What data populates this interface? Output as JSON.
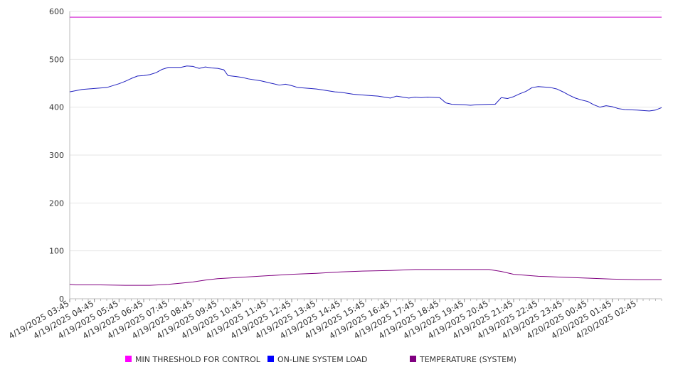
{
  "chart_data": {
    "type": "line",
    "title": "",
    "xlabel": "",
    "ylabel": "",
    "ylim": [
      0,
      600
    ],
    "y_ticks": [
      0,
      100,
      200,
      300,
      400,
      500,
      600
    ],
    "grid": true,
    "legend_position": "bottom",
    "x_tick_labels": [
      "4/19/2025 03:45",
      "4/19/2025 04:45",
      "4/19/2025 05:45",
      "4/19/2025 06:45",
      "4/19/2025 07:45",
      "4/19/2025 08:45",
      "4/19/2025 09:45",
      "4/19/2025 10:45",
      "4/19/2025 11:45",
      "4/19/2025 12:45",
      "4/19/2025 13:45",
      "4/19/2025 14:45",
      "4/19/2025 15:45",
      "4/19/2025 16:45",
      "4/19/2025 17:45",
      "4/19/2025 18:45",
      "4/19/2025 19:45",
      "4/19/2025 20:45",
      "4/19/2025 21:45",
      "4/19/2025 22:45",
      "4/19/2025 23:45",
      "4/20/2025 00:45",
      "4/20/2025 01:45",
      "4/20/2025 02:45"
    ],
    "x_range": [
      "4/19/2025 03:45",
      "4/20/2025 03:45"
    ],
    "series": [
      {
        "name": "MIN THRESHOLD FOR CONTROL",
        "color": "#ff00ff",
        "line_color": "#cc00cc",
        "points": [
          [
            "4/19/2025 03:45",
            588
          ],
          [
            "4/20/2025 03:45",
            588
          ]
        ]
      },
      {
        "name": "ON-LINE SYSTEM LOAD",
        "color": "#0000ff",
        "line_color": "#1f1fbf",
        "points": [
          [
            "4/19/2025 03:45",
            432
          ],
          [
            "4/19/2025 04:15",
            437
          ],
          [
            "4/19/2025 04:45",
            439
          ],
          [
            "4/19/2025 05:15",
            441
          ],
          [
            "4/19/2025 05:45",
            449
          ],
          [
            "4/19/2025 06:00",
            454
          ],
          [
            "4/19/2025 06:15",
            460
          ],
          [
            "4/19/2025 06:30",
            465
          ],
          [
            "4/19/2025 06:45",
            466
          ],
          [
            "4/19/2025 07:00",
            468
          ],
          [
            "4/19/2025 07:15",
            472
          ],
          [
            "4/19/2025 07:30",
            479
          ],
          [
            "4/19/2025 07:45",
            483
          ],
          [
            "4/19/2025 08:15",
            483
          ],
          [
            "4/19/2025 08:30",
            486
          ],
          [
            "4/19/2025 08:45",
            485
          ],
          [
            "4/19/2025 09:00",
            481
          ],
          [
            "4/19/2025 09:15",
            484
          ],
          [
            "4/19/2025 09:30",
            482
          ],
          [
            "4/19/2025 09:45",
            481
          ],
          [
            "4/19/2025 10:00",
            478
          ],
          [
            "4/19/2025 10:10",
            466
          ],
          [
            "4/19/2025 10:30",
            464
          ],
          [
            "4/19/2025 10:45",
            462
          ],
          [
            "4/19/2025 11:00",
            459
          ],
          [
            "4/19/2025 11:30",
            455
          ],
          [
            "4/19/2025 11:45",
            452
          ],
          [
            "4/19/2025 12:00",
            449
          ],
          [
            "4/19/2025 12:15",
            446
          ],
          [
            "4/19/2025 12:30",
            448
          ],
          [
            "4/19/2025 12:45",
            445
          ],
          [
            "4/19/2025 13:00",
            441
          ],
          [
            "4/19/2025 13:30",
            439
          ],
          [
            "4/19/2025 13:45",
            438
          ],
          [
            "4/19/2025 14:00",
            436
          ],
          [
            "4/19/2025 14:30",
            432
          ],
          [
            "4/19/2025 14:45",
            431
          ],
          [
            "4/19/2025 15:15",
            427
          ],
          [
            "4/19/2025 15:45",
            425
          ],
          [
            "4/19/2025 16:15",
            423
          ],
          [
            "4/19/2025 16:30",
            421
          ],
          [
            "4/19/2025 16:45",
            419
          ],
          [
            "4/19/2025 17:00",
            423
          ],
          [
            "4/19/2025 17:15",
            421
          ],
          [
            "4/19/2025 17:30",
            419
          ],
          [
            "4/19/2025 17:45",
            421
          ],
          [
            "4/19/2025 18:00",
            420
          ],
          [
            "4/19/2025 18:15",
            421
          ],
          [
            "4/19/2025 18:45",
            420
          ],
          [
            "4/19/2025 19:00",
            409
          ],
          [
            "4/19/2025 19:15",
            406
          ],
          [
            "4/19/2025 19:45",
            405
          ],
          [
            "4/19/2025 20:00",
            404
          ],
          [
            "4/19/2025 20:15",
            405
          ],
          [
            "4/19/2025 20:45",
            406
          ],
          [
            "4/19/2025 21:00",
            406
          ],
          [
            "4/19/2025 21:15",
            420
          ],
          [
            "4/19/2025 21:30",
            418
          ],
          [
            "4/19/2025 21:45",
            422
          ],
          [
            "4/19/2025 22:00",
            428
          ],
          [
            "4/19/2025 22:15",
            433
          ],
          [
            "4/19/2025 22:30",
            441
          ],
          [
            "4/19/2025 22:45",
            443
          ],
          [
            "4/19/2025 23:00",
            442
          ],
          [
            "4/19/2025 23:15",
            441
          ],
          [
            "4/19/2025 23:30",
            438
          ],
          [
            "4/19/2025 23:45",
            432
          ],
          [
            "4/20/2025 00:00",
            425
          ],
          [
            "4/20/2025 00:15",
            419
          ],
          [
            "4/20/2025 00:30",
            415
          ],
          [
            "4/20/2025 00:45",
            412
          ],
          [
            "4/20/2025 01:00",
            405
          ],
          [
            "4/20/2025 01:15",
            400
          ],
          [
            "4/20/2025 01:30",
            403
          ],
          [
            "4/20/2025 01:45",
            401
          ],
          [
            "4/20/2025 02:00",
            397
          ],
          [
            "4/20/2025 02:15",
            395
          ],
          [
            "4/20/2025 02:45",
            394
          ],
          [
            "4/20/2025 03:00",
            393
          ],
          [
            "4/20/2025 03:15",
            392
          ],
          [
            "4/20/2025 03:30",
            394
          ],
          [
            "4/20/2025 03:45",
            399
          ]
        ]
      },
      {
        "name": "TEMPERATURE (SYSTEM)",
        "color": "#800080",
        "line_color": "#800080",
        "points": [
          [
            "4/19/2025 03:45",
            30
          ],
          [
            "4/19/2025 04:00",
            29
          ],
          [
            "4/19/2025 05:00",
            29
          ],
          [
            "4/19/2025 06:00",
            28
          ],
          [
            "4/19/2025 07:00",
            28
          ],
          [
            "4/19/2025 07:45",
            30
          ],
          [
            "4/19/2025 08:45",
            35
          ],
          [
            "4/19/2025 09:15",
            39
          ],
          [
            "4/19/2025 09:45",
            42
          ],
          [
            "4/19/2025 10:45",
            45
          ],
          [
            "4/19/2025 11:45",
            48
          ],
          [
            "4/19/2025 12:45",
            51
          ],
          [
            "4/19/2025 13:45",
            53
          ],
          [
            "4/19/2025 14:45",
            56
          ],
          [
            "4/19/2025 15:45",
            58
          ],
          [
            "4/19/2025 16:45",
            59
          ],
          [
            "4/19/2025 17:45",
            61
          ],
          [
            "4/19/2025 18:45",
            61
          ],
          [
            "4/19/2025 19:45",
            61
          ],
          [
            "4/19/2025 20:45",
            61
          ],
          [
            "4/19/2025 21:15",
            57
          ],
          [
            "4/19/2025 21:45",
            51
          ],
          [
            "4/19/2025 22:45",
            47
          ],
          [
            "4/19/2025 23:45",
            45
          ],
          [
            "4/20/2025 00:45",
            43
          ],
          [
            "4/20/2025 01:45",
            41
          ],
          [
            "4/20/2025 02:45",
            40
          ],
          [
            "4/20/2025 03:45",
            40
          ]
        ]
      }
    ]
  }
}
